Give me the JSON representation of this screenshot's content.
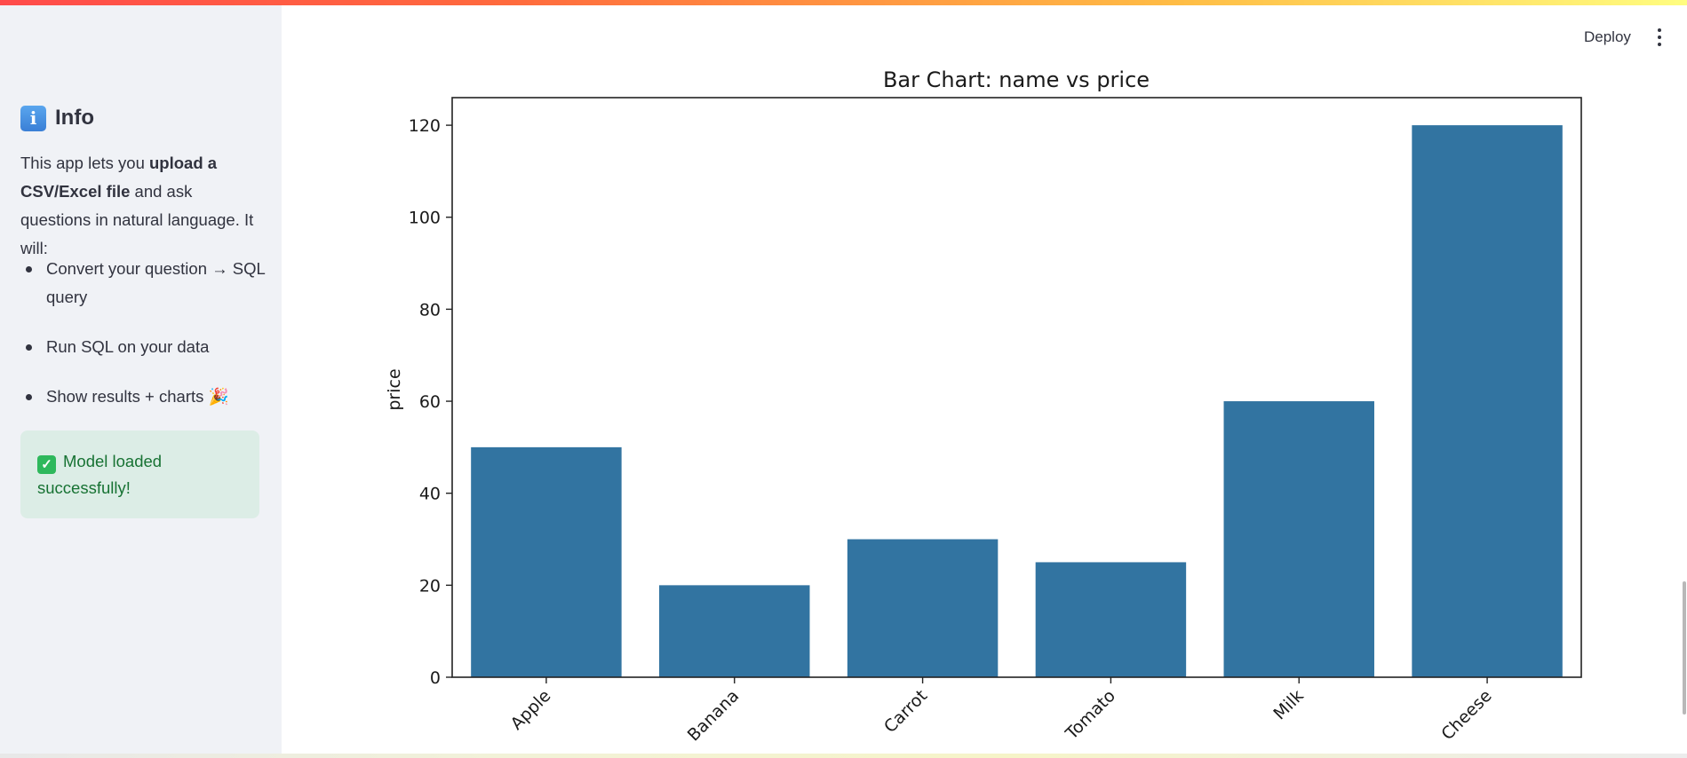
{
  "sidebar": {
    "heading": {
      "icon": "info-icon",
      "label": "Info"
    },
    "intro": {
      "part1": "This app lets you ",
      "bold": "upload a CSV/Excel file",
      "part2": " and ask questions in natural language. It will:"
    },
    "bullets": [
      "Convert your question → SQL query",
      "Run SQL on your data",
      "Show results + charts 🎉"
    ],
    "success": {
      "icon": "check-mark-icon",
      "message": "Model loaded successfully!"
    }
  },
  "header": {
    "deploy_label": "Deploy",
    "menu_icon": "vertical-ellipsis-icon"
  },
  "chart_data": {
    "type": "bar",
    "title": "Bar Chart: name vs price",
    "xlabel": "",
    "ylabel": "price",
    "categories": [
      "Apple",
      "Banana",
      "Carrot",
      "Tomato",
      "Milk",
      "Cheese"
    ],
    "values": [
      50,
      20,
      30,
      25,
      60,
      120
    ],
    "ylim": [
      0,
      126
    ],
    "yticks": [
      0,
      20,
      40,
      60,
      80,
      100,
      120
    ],
    "bar_color": "#3274a1",
    "grid": false,
    "xtick_rotation": 45
  }
}
